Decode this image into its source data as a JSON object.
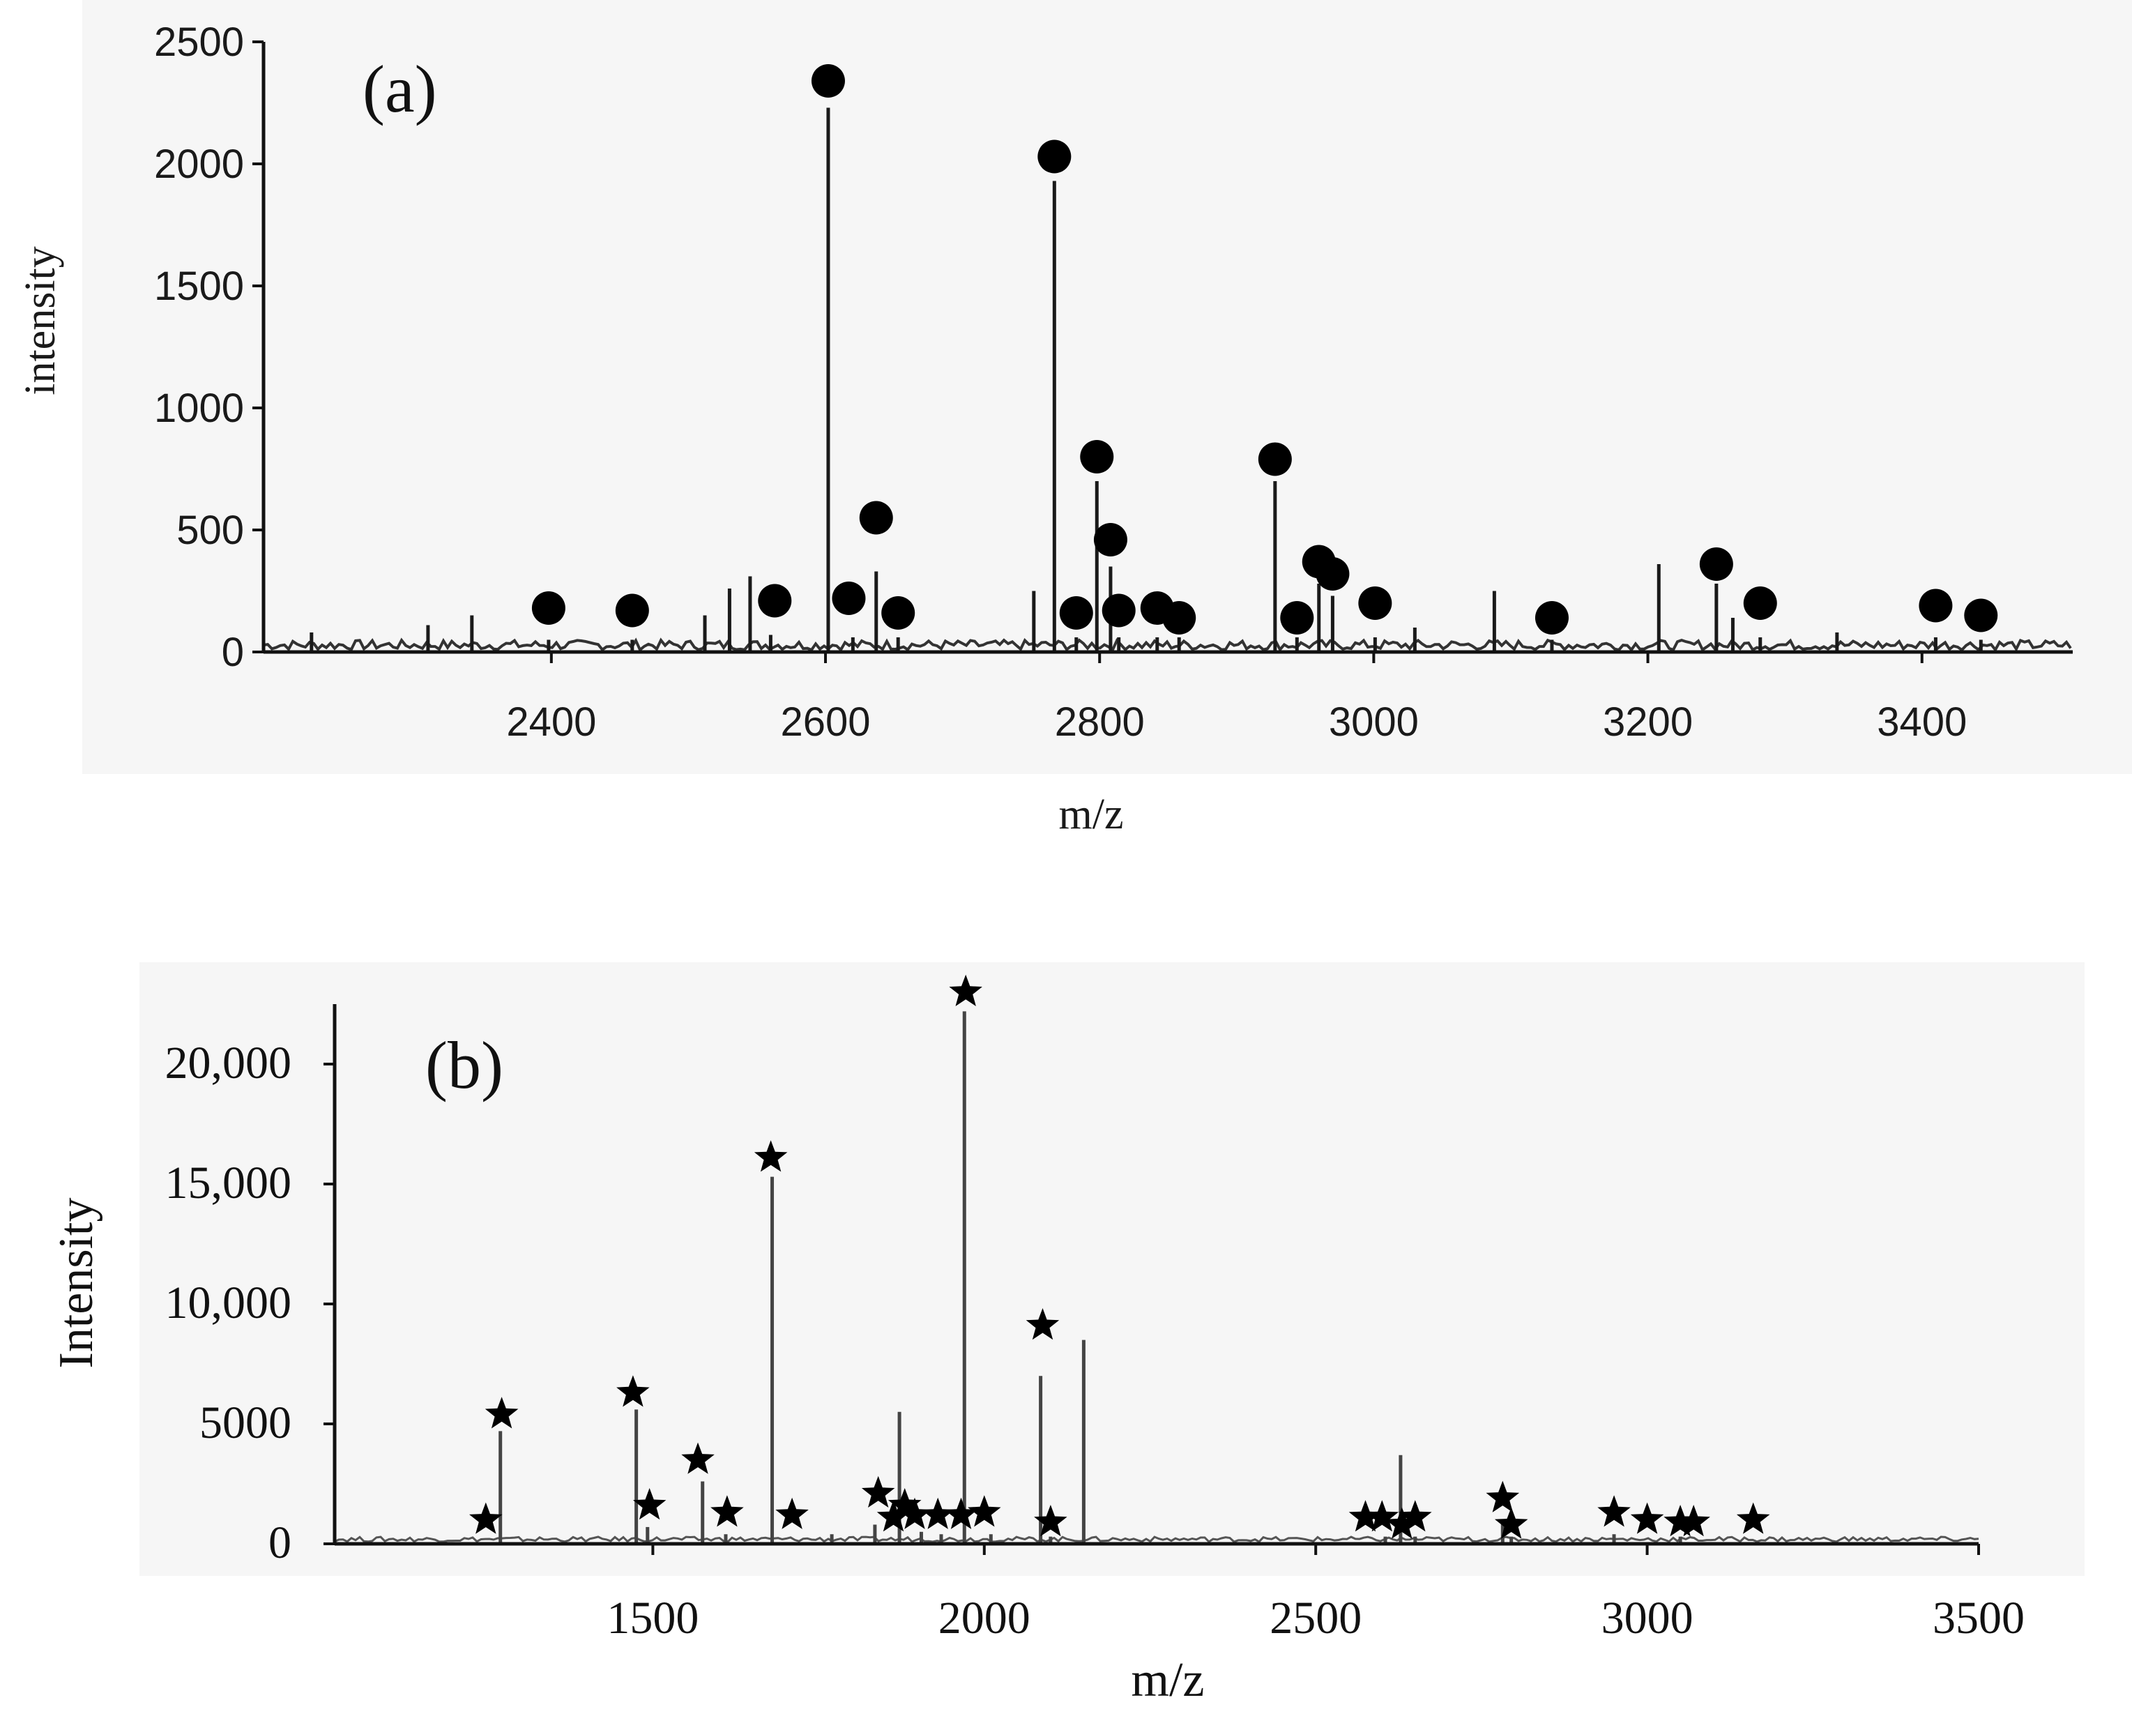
{
  "chart_data": [
    {
      "panel": "(a)",
      "type": "bar",
      "xlabel": "m/z",
      "ylabel": "intensity",
      "xlim": [
        2190,
        3510
      ],
      "ylim": [
        0,
        2500
      ],
      "xticks": [
        2400,
        2600,
        2800,
        3000,
        3200,
        3400
      ],
      "xtick_labels": [
        "2400",
        "2600",
        "2800",
        "3000",
        "3200",
        "3400"
      ],
      "yticks": [
        0,
        500,
        1000,
        1500,
        2000,
        2500
      ],
      "ytick_labels": [
        "0",
        "500",
        "1000",
        "1500",
        "2000",
        "2500"
      ],
      "marker": "circle",
      "peaks": [
        {
          "mz": 2225,
          "intensity": 80
        },
        {
          "mz": 2310,
          "intensity": 110
        },
        {
          "mz": 2342,
          "intensity": 150
        },
        {
          "mz": 2398,
          "intensity": 50
        },
        {
          "mz": 2459,
          "intensity": 50
        },
        {
          "mz": 2512,
          "intensity": 150
        },
        {
          "mz": 2530,
          "intensity": 260
        },
        {
          "mz": 2545,
          "intensity": 310
        },
        {
          "mz": 2560,
          "intensity": 70
        },
        {
          "mz": 2602,
          "intensity": 2230
        },
        {
          "mz": 2620,
          "intensity": 60
        },
        {
          "mz": 2637,
          "intensity": 330
        },
        {
          "mz": 2653,
          "intensity": 60
        },
        {
          "mz": 2752,
          "intensity": 250
        },
        {
          "mz": 2767,
          "intensity": 1930
        },
        {
          "mz": 2783,
          "intensity": 60
        },
        {
          "mz": 2798,
          "intensity": 700
        },
        {
          "mz": 2808,
          "intensity": 350
        },
        {
          "mz": 2814,
          "intensity": 60
        },
        {
          "mz": 2842,
          "intensity": 60
        },
        {
          "mz": 2858,
          "intensity": 60
        },
        {
          "mz": 2928,
          "intensity": 700
        },
        {
          "mz": 2944,
          "intensity": 60
        },
        {
          "mz": 2960,
          "intensity": 280
        },
        {
          "mz": 2970,
          "intensity": 230
        },
        {
          "mz": 3001,
          "intensity": 60
        },
        {
          "mz": 3030,
          "intensity": 100
        },
        {
          "mz": 3088,
          "intensity": 250
        },
        {
          "mz": 3130,
          "intensity": 50
        },
        {
          "mz": 3208,
          "intensity": 360
        },
        {
          "mz": 3250,
          "intensity": 280
        },
        {
          "mz": 3262,
          "intensity": 140
        },
        {
          "mz": 3282,
          "intensity": 60
        },
        {
          "mz": 3338,
          "intensity": 80
        },
        {
          "mz": 3410,
          "intensity": 60
        },
        {
          "mz": 3443,
          "intensity": 50
        }
      ],
      "marked": [
        {
          "mz": 2398,
          "intensity": 180
        },
        {
          "mz": 2459,
          "intensity": 170
        },
        {
          "mz": 2563,
          "intensity": 210
        },
        {
          "mz": 2602,
          "intensity": 2340
        },
        {
          "mz": 2617,
          "intensity": 220
        },
        {
          "mz": 2637,
          "intensity": 550
        },
        {
          "mz": 2653,
          "intensity": 160
        },
        {
          "mz": 2767,
          "intensity": 2030
        },
        {
          "mz": 2783,
          "intensity": 160
        },
        {
          "mz": 2798,
          "intensity": 800
        },
        {
          "mz": 2808,
          "intensity": 460
        },
        {
          "mz": 2814,
          "intensity": 170
        },
        {
          "mz": 2842,
          "intensity": 180
        },
        {
          "mz": 2858,
          "intensity": 140
        },
        {
          "mz": 2928,
          "intensity": 790
        },
        {
          "mz": 2944,
          "intensity": 140
        },
        {
          "mz": 2960,
          "intensity": 370
        },
        {
          "mz": 2970,
          "intensity": 320
        },
        {
          "mz": 3001,
          "intensity": 200
        },
        {
          "mz": 3130,
          "intensity": 140
        },
        {
          "mz": 3250,
          "intensity": 360
        },
        {
          "mz": 3282,
          "intensity": 200
        },
        {
          "mz": 3410,
          "intensity": 190
        },
        {
          "mz": 3443,
          "intensity": 150
        }
      ]
    },
    {
      "panel": "(b)",
      "type": "bar",
      "xlabel": "m/z",
      "ylabel": "Intensity",
      "xlim": [
        1020,
        3500
      ],
      "ylim": [
        0,
        22500
      ],
      "xticks": [
        1500,
        2000,
        2500,
        3000,
        3500
      ],
      "xtick_labels": [
        "1500",
        "2000",
        "2500",
        "3000",
        "3500"
      ],
      "yticks": [
        0,
        5000,
        10000,
        15000,
        20000
      ],
      "ytick_labels": [
        "0",
        "5000",
        "10,000",
        "15,000",
        "20,000"
      ],
      "marker": "star",
      "peaks": [
        {
          "mz": 1270,
          "intensity": 4700
        },
        {
          "mz": 1475,
          "intensity": 5600
        },
        {
          "mz": 1492,
          "intensity": 700
        },
        {
          "mz": 1575,
          "intensity": 2600
        },
        {
          "mz": 1610,
          "intensity": 400
        },
        {
          "mz": 1680,
          "intensity": 15300
        },
        {
          "mz": 1770,
          "intensity": 400
        },
        {
          "mz": 1835,
          "intensity": 800
        },
        {
          "mz": 1872,
          "intensity": 5500
        },
        {
          "mz": 1905,
          "intensity": 500
        },
        {
          "mz": 1935,
          "intensity": 400
        },
        {
          "mz": 1970,
          "intensity": 22200
        },
        {
          "mz": 2010,
          "intensity": 400
        },
        {
          "mz": 2085,
          "intensity": 7000
        },
        {
          "mz": 2100,
          "intensity": 300
        },
        {
          "mz": 2150,
          "intensity": 8500
        },
        {
          "mz": 2605,
          "intensity": 300
        },
        {
          "mz": 2628,
          "intensity": 3700
        },
        {
          "mz": 2650,
          "intensity": 300
        },
        {
          "mz": 2782,
          "intensity": 1000
        },
        {
          "mz": 2795,
          "intensity": 300
        },
        {
          "mz": 2950,
          "intensity": 400
        },
        {
          "mz": 3050,
          "intensity": 300
        }
      ],
      "marked": [
        {
          "mz": 1248,
          "intensity": 1000
        },
        {
          "mz": 1272,
          "intensity": 5400
        },
        {
          "mz": 1470,
          "intensity": 6300
        },
        {
          "mz": 1495,
          "intensity": 1600
        },
        {
          "mz": 1568,
          "intensity": 3500
        },
        {
          "mz": 1612,
          "intensity": 1300
        },
        {
          "mz": 1678,
          "intensity": 16100
        },
        {
          "mz": 1710,
          "intensity": 1200
        },
        {
          "mz": 1840,
          "intensity": 2100
        },
        {
          "mz": 1863,
          "intensity": 1100
        },
        {
          "mz": 1880,
          "intensity": 1600
        },
        {
          "mz": 1895,
          "intensity": 1200
        },
        {
          "mz": 1930,
          "intensity": 1200
        },
        {
          "mz": 1965,
          "intensity": 1200
        },
        {
          "mz": 1972,
          "intensity": 23000
        },
        {
          "mz": 2000,
          "intensity": 1300
        },
        {
          "mz": 2088,
          "intensity": 9100
        },
        {
          "mz": 2100,
          "intensity": 900
        },
        {
          "mz": 2575,
          "intensity": 1100
        },
        {
          "mz": 2600,
          "intensity": 1100
        },
        {
          "mz": 2630,
          "intensity": 800
        },
        {
          "mz": 2650,
          "intensity": 1100
        },
        {
          "mz": 2782,
          "intensity": 1900
        },
        {
          "mz": 2795,
          "intensity": 800
        },
        {
          "mz": 2950,
          "intensity": 1300
        },
        {
          "mz": 3000,
          "intensity": 1000
        },
        {
          "mz": 3050,
          "intensity": 900
        },
        {
          "mz": 3070,
          "intensity": 900
        },
        {
          "mz": 3160,
          "intensity": 1000
        }
      ]
    }
  ]
}
